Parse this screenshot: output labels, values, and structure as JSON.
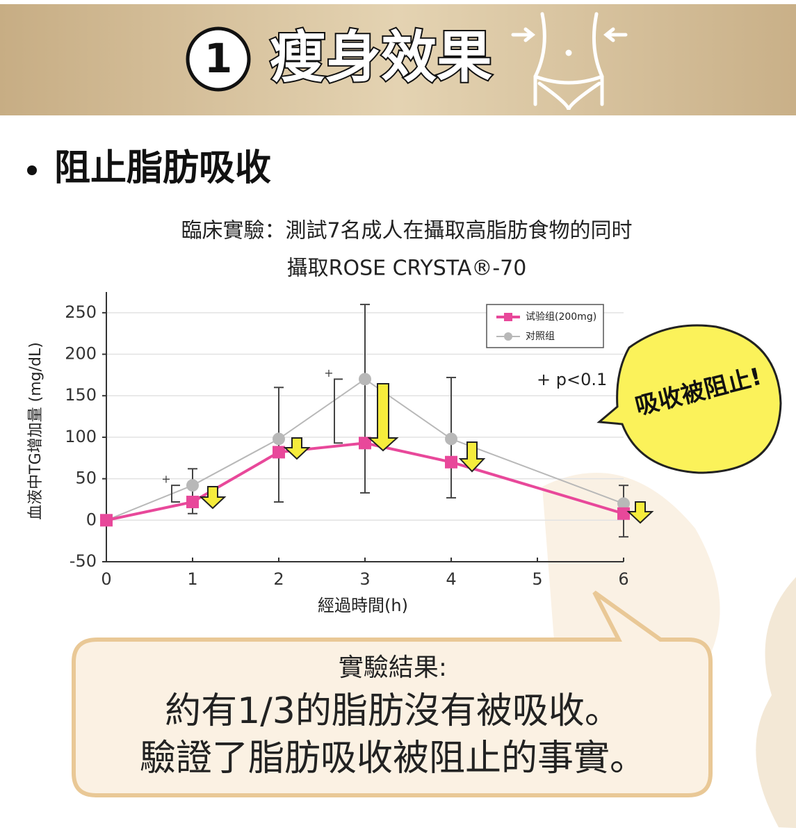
{
  "header": {
    "number": "1",
    "title": "瘦身效果"
  },
  "section": {
    "title": "阻止脂肪吸收"
  },
  "chart_data": {
    "type": "line",
    "title": "臨床實驗：測試7名成人在攝取高脂肪食物的同时",
    "subtitle": "攝取ROSE CRYSTA®-70",
    "x_label": "經過時間(h)",
    "y_label": "血液中TG增加量 (mg/dL)",
    "x": [
      0,
      1,
      2,
      3,
      4,
      6
    ],
    "series": [
      {
        "name": "试验组(200mg)",
        "color": "#e8489a",
        "values": [
          0,
          22,
          82,
          93,
          70,
          8
        ]
      },
      {
        "name": "对照组",
        "color": "#b8b8b8",
        "values": [
          0,
          42,
          98,
          170,
          98,
          20
        ]
      }
    ],
    "errorbars": [
      {
        "x": 1,
        "low": 8,
        "high": 62
      },
      {
        "x": 2,
        "low": 22,
        "high": 160
      },
      {
        "x": 3,
        "low": 33,
        "high": 260
      },
      {
        "x": 4,
        "low": 27,
        "high": 172
      },
      {
        "x": 6,
        "low": -20,
        "high": 42
      }
    ],
    "xlim": [
      0,
      6
    ],
    "xticks": [
      0,
      1,
      2,
      3,
      4,
      5,
      6
    ],
    "ylim": [
      -50,
      275
    ],
    "yticks": [
      -50,
      0,
      50,
      100,
      150,
      200,
      250
    ],
    "grid": true,
    "legend": "upper right",
    "significance_note": "+ p<0.1",
    "significance_marks": [
      {
        "x": 1,
        "label": "+"
      },
      {
        "x": 3,
        "label": "+"
      }
    ],
    "callout": "吸收被阻止!"
  },
  "result": {
    "heading": "實驗結果:",
    "line1": "約有1/3的脂肪沒有被吸收。",
    "line2": "驗證了脂肪吸收被阻止的事實。"
  }
}
